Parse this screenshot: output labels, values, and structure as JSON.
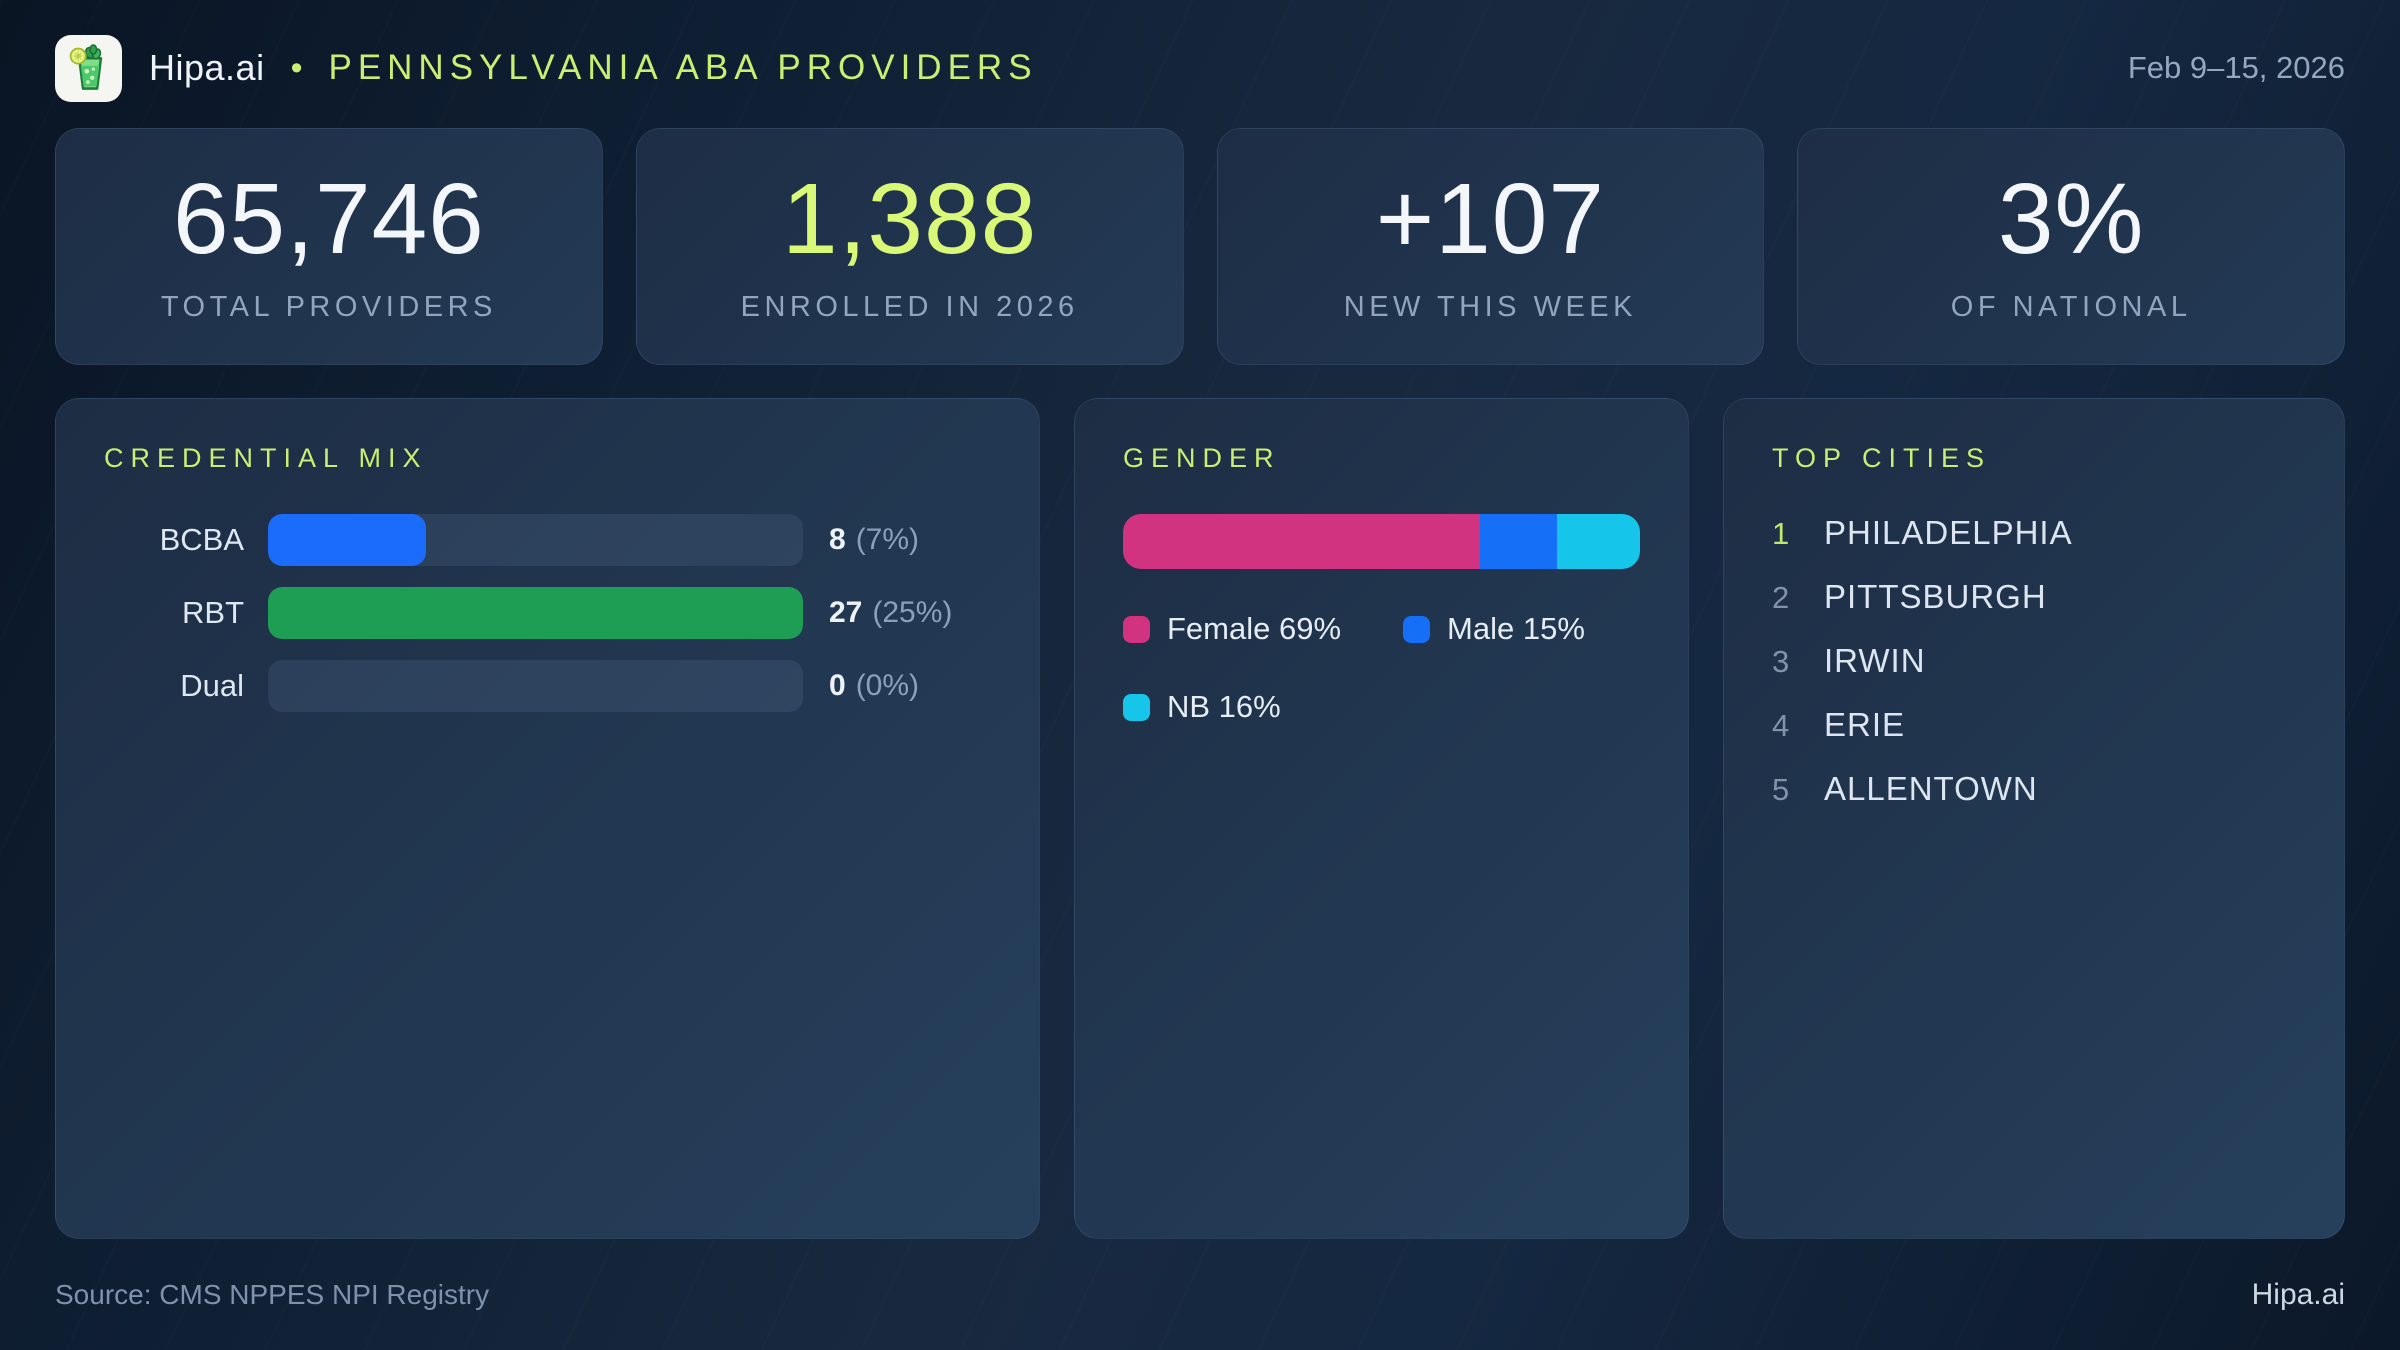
{
  "header": {
    "brand": "Hipa.ai",
    "separator": "•",
    "title": "PENNSYLVANIA ABA PROVIDERS",
    "date_range": "Feb 9–15, 2026"
  },
  "colors": {
    "accent_lime": "#c9ee72",
    "stat_value_default": "#f3f7fb",
    "stat_value_accent": "#d9f877"
  },
  "stats": [
    {
      "value": "65,746",
      "label": "TOTAL PROVIDERS",
      "color": "#f3f7fb"
    },
    {
      "value": "1,388",
      "label": "ENROLLED IN 2026",
      "color": "#d9f877"
    },
    {
      "value": "+107",
      "label": "NEW THIS WEEK",
      "color": "#f3f7fb"
    },
    {
      "value": "3%",
      "label": "OF NATIONAL",
      "color": "#f3f7fb"
    }
  ],
  "credential_mix": {
    "title": "CREDENTIAL MIX",
    "rows": [
      {
        "label": "BCBA",
        "count": "8",
        "pct_label": "(7%)",
        "fill_pct": 29.6,
        "color": "#1b6cfa"
      },
      {
        "label": "RBT",
        "count": "27",
        "pct_label": "(25%)",
        "fill_pct": 100,
        "color": "#1e9e55"
      },
      {
        "label": "Dual",
        "count": "0",
        "pct_label": "(0%)",
        "fill_pct": 0,
        "color": "#1b6cfa"
      }
    ]
  },
  "gender": {
    "title": "GENDER",
    "segments": [
      {
        "name": "Female",
        "pct": 69,
        "color": "#d23380",
        "legend": "Female 69%"
      },
      {
        "name": "Male",
        "pct": 15,
        "color": "#156ff7",
        "legend": "Male 15%"
      },
      {
        "name": "NB",
        "pct": 16,
        "color": "#15c6ea",
        "legend": "NB 16%"
      }
    ]
  },
  "top_cities": {
    "title": "TOP CITIES",
    "items": [
      {
        "rank": "1",
        "name": "PHILADELPHIA"
      },
      {
        "rank": "2",
        "name": "PITTSBURGH"
      },
      {
        "rank": "3",
        "name": "IRWIN"
      },
      {
        "rank": "4",
        "name": "ERIE"
      },
      {
        "rank": "5",
        "name": "ALLENTOWN"
      }
    ]
  },
  "footer": {
    "source": "Source: CMS NPPES NPI Registry",
    "brand": "Hipa.ai"
  },
  "chart_data": [
    {
      "type": "bar",
      "orientation": "horizontal",
      "title": "CREDENTIAL MIX",
      "categories": [
        "BCBA",
        "RBT",
        "Dual"
      ],
      "values": [
        8,
        27,
        0
      ],
      "value_labels": [
        "8 (7%)",
        "27 (25%)",
        "0 (0%)"
      ],
      "xlim": [
        0,
        27
      ],
      "grid": false,
      "bar_colors": [
        "#1b6cfa",
        "#1e9e55",
        "#1b6cfa"
      ]
    },
    {
      "type": "bar",
      "subtype": "stacked-single-horizontal",
      "title": "GENDER",
      "series": [
        {
          "name": "Female",
          "values": [
            69
          ],
          "color": "#d23380"
        },
        {
          "name": "Male",
          "values": [
            15
          ],
          "color": "#156ff7"
        },
        {
          "name": "NB",
          "values": [
            16
          ],
          "color": "#15c6ea"
        }
      ],
      "unit": "%",
      "xlim": [
        0,
        100
      ],
      "legend_position": "below"
    },
    {
      "type": "table",
      "title": "TOP CITIES",
      "categories": [
        "1",
        "2",
        "3",
        "4",
        "5"
      ],
      "values": [
        "PHILADELPHIA",
        "PITTSBURGH",
        "IRWIN",
        "ERIE",
        "ALLENTOWN"
      ]
    }
  ]
}
